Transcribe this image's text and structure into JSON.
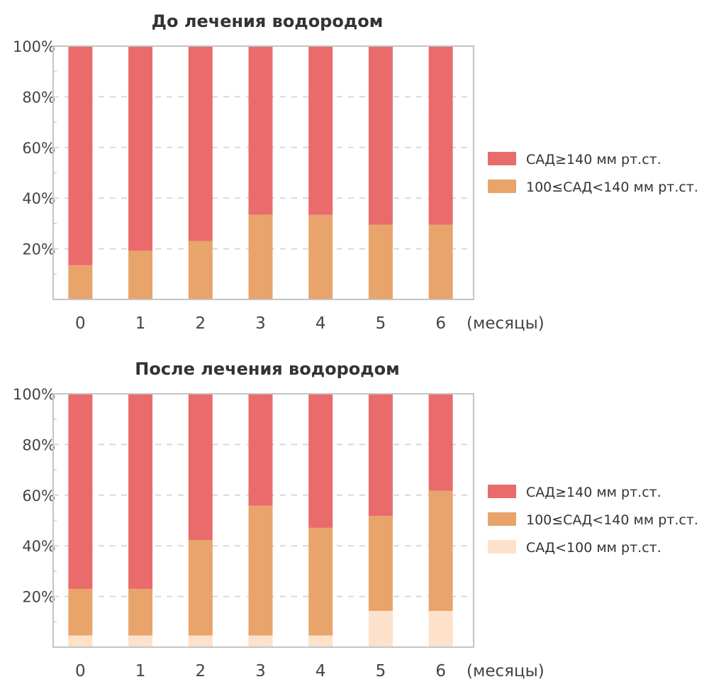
{
  "colors": {
    "high": "#e96b6c",
    "mid": "#e8a46b",
    "low": "#fde1cb",
    "axis": "#c4c4c4",
    "grid": "#d9d9d9",
    "text": "#444444"
  },
  "chart_data": [
    {
      "type": "bar",
      "stacked": true,
      "title": "До лечения водородом",
      "categories": [
        "0",
        "1",
        "2",
        "3",
        "4",
        "5",
        "6"
      ],
      "xlabel": "(месяцы)",
      "ylim": [
        0,
        100
      ],
      "yticks": [
        "20%",
        "40%",
        "60%",
        "80%",
        "100%"
      ],
      "grid": true,
      "legend_position": "right",
      "series": [
        {
          "name": "100≤САД<140 мм рт.ст.",
          "key": "mid",
          "values": [
            13.5,
            19.2,
            23.1,
            33.4,
            33.4,
            29.5,
            29.5
          ]
        },
        {
          "name": "САД≥140 мм рт.ст.",
          "key": "high",
          "values": [
            86.5,
            80.8,
            76.9,
            66.6,
            66.6,
            70.5,
            70.5
          ]
        }
      ],
      "legend": [
        "САД≥140 мм рт.ст.",
        "100≤САД<140 мм рт.ст."
      ]
    },
    {
      "type": "bar",
      "stacked": true,
      "title": "После лечения водородом",
      "categories": [
        "0",
        "1",
        "2",
        "3",
        "4",
        "5",
        "6"
      ],
      "xlabel": "(месяцы)",
      "ylim": [
        0,
        100
      ],
      "yticks": [
        "20%",
        "40%",
        "60%",
        "80%",
        "100%"
      ],
      "grid": true,
      "legend_position": "right",
      "series": [
        {
          "name": "САД<100 мм рт.ст.",
          "key": "low",
          "values": [
            4.6,
            4.6,
            4.6,
            4.6,
            4.6,
            14.3,
            14.3
          ]
        },
        {
          "name": "100≤САД<140 мм рт.ст.",
          "key": "mid",
          "values": [
            18.4,
            18.4,
            37.7,
            51.2,
            42.5,
            37.5,
            47.4
          ]
        },
        {
          "name": "САД≥140 мм рт.ст.",
          "key": "high",
          "values": [
            77.0,
            77.0,
            57.7,
            44.2,
            52.9,
            48.2,
            38.3
          ]
        }
      ],
      "legend": [
        "САД≥140 мм рт.ст.",
        "100≤САД<140 мм рт.ст.",
        "САД<100 мм рт.ст."
      ]
    }
  ]
}
